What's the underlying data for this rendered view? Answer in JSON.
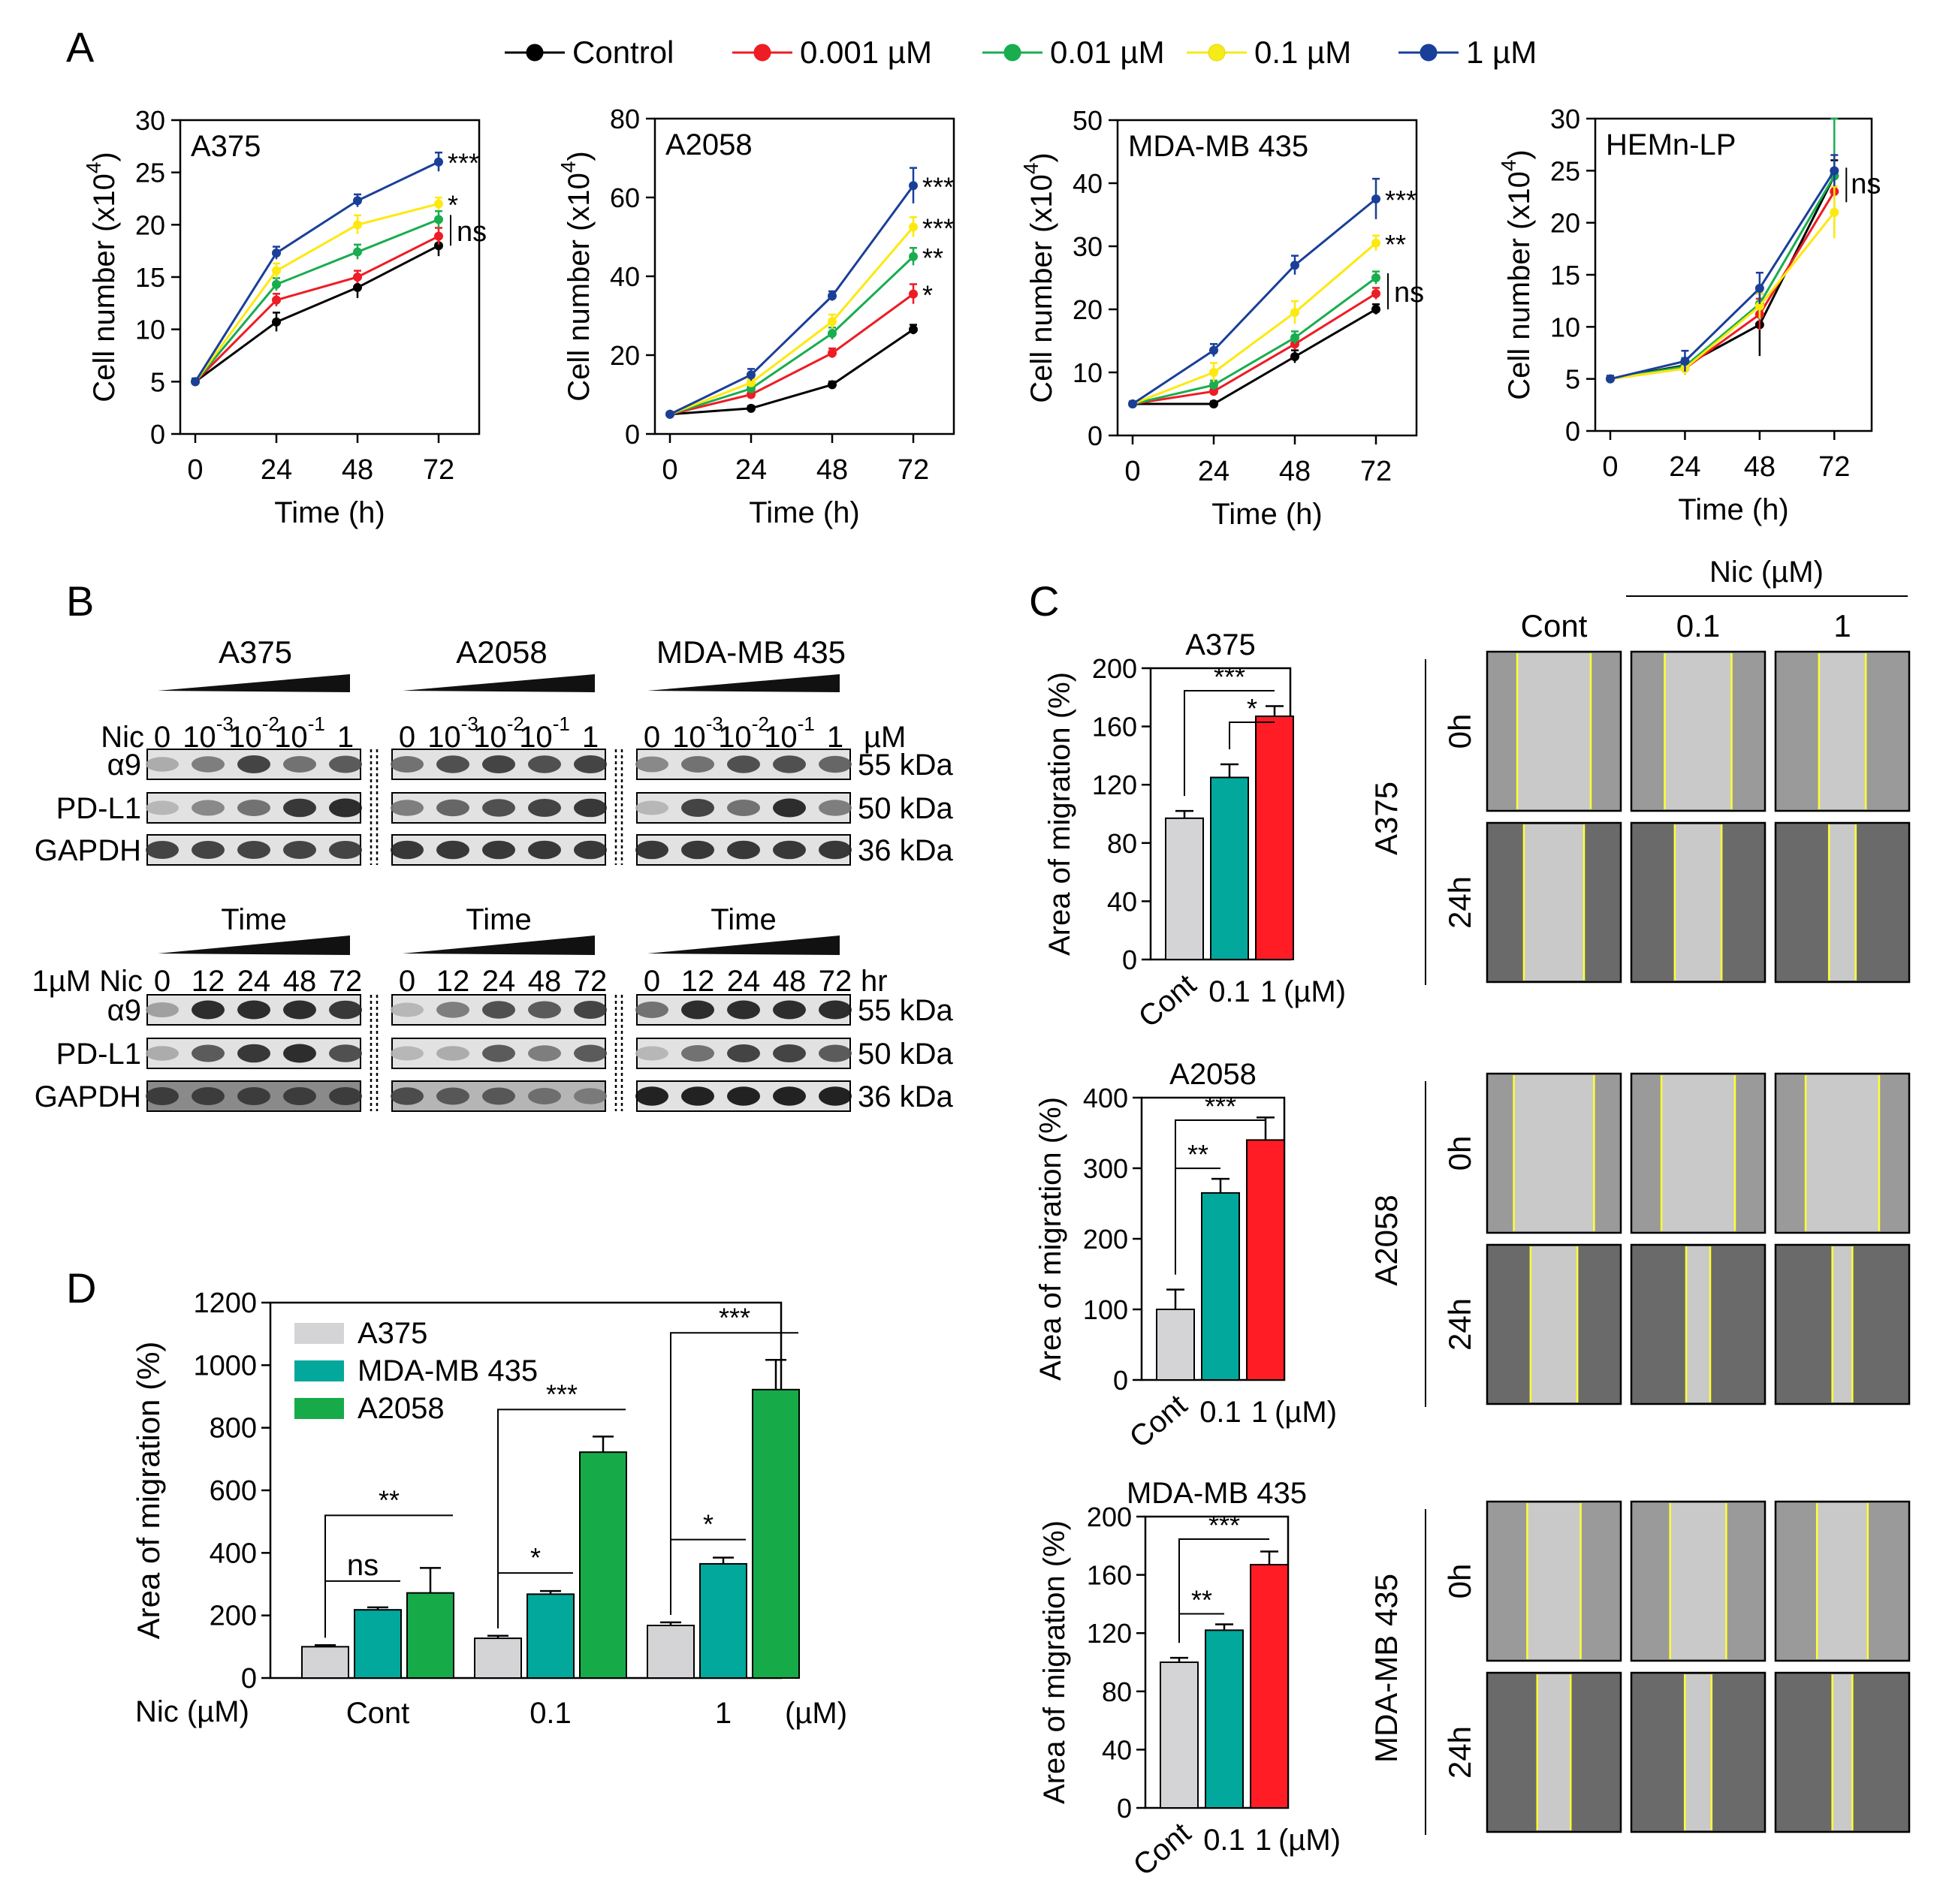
{
  "panel_labels": {
    "a": "A",
    "b": "B",
    "c": "C",
    "d": "D"
  },
  "legend": [
    {
      "name": "Control",
      "color": "#000000"
    },
    {
      "name": "0.001 µM",
      "color": "#ee1c24"
    },
    {
      "name": "0.01 µM",
      "color": "#19ad4f"
    },
    {
      "name": "0.1 µM",
      "color": "#f5eb19"
    },
    {
      "name": "1 µM",
      "color": "#1a3f99"
    }
  ],
  "colors": {
    "cont_bar": "#d4d4d6",
    "teal": "#01a89b",
    "red": "#ff1c25",
    "green": "#16aa49",
    "yellow_line": "#ffd400",
    "micro_field": "#9a9a9a",
    "micro_gap": "#c9c9c9",
    "wound_edge": "#ffff33"
  },
  "chart_data": [
    {
      "type": "line",
      "panel": "A",
      "title": "A375",
      "x": [
        0,
        24,
        48,
        72
      ],
      "xlabel": "Time (h)",
      "ylabel_main": "Cell number (x10",
      "ylabel_sup": "4",
      "ylabel_end": ")",
      "ylim": [
        0,
        30
      ],
      "yticks": [
        0,
        5,
        10,
        15,
        20,
        25,
        30
      ],
      "series": [
        {
          "name": "Control",
          "values": [
            5,
            10.7,
            14,
            18
          ],
          "err": [
            0.3,
            0.9,
            1.0,
            1.0
          ]
        },
        {
          "name": "0.001 µM",
          "values": [
            5,
            12.8,
            15,
            18.9
          ],
          "err": [
            0.3,
            0.6,
            0.6,
            0.8
          ]
        },
        {
          "name": "0.01 µM",
          "values": [
            5,
            14.3,
            17.4,
            20.5
          ],
          "err": [
            0.3,
            0.6,
            0.7,
            0.8
          ]
        },
        {
          "name": "0.1 µM",
          "values": [
            5,
            15.6,
            20,
            22
          ],
          "err": [
            0.3,
            0.7,
            0.9,
            0.6
          ]
        },
        {
          "name": "1 µM",
          "values": [
            5,
            17.3,
            22.3,
            26
          ],
          "err": [
            0.3,
            0.6,
            0.6,
            0.9
          ]
        }
      ],
      "significance": [
        "***",
        "*",
        "ns",
        "",
        ""
      ]
    },
    {
      "type": "line",
      "panel": "A",
      "title": "A2058",
      "x": [
        0,
        24,
        48,
        72
      ],
      "xlabel": "Time (h)",
      "ylabel_main": "Cell number (x10",
      "ylabel_sup": "4",
      "ylabel_end": ")",
      "ylim": [
        0,
        80
      ],
      "yticks": [
        0,
        20,
        40,
        60,
        80
      ],
      "series": [
        {
          "name": "Control",
          "values": [
            5,
            6.5,
            12.5,
            26.5
          ],
          "err": [
            0.5,
            0.6,
            0.8,
            1.2
          ]
        },
        {
          "name": "0.001 µM",
          "values": [
            5,
            10,
            20.5,
            35.5
          ],
          "err": [
            0.5,
            0.8,
            1.2,
            2.5
          ]
        },
        {
          "name": "0.01 µM",
          "values": [
            5,
            11.5,
            25.5,
            45
          ],
          "err": [
            0.5,
            0.9,
            1.5,
            2.2
          ]
        },
        {
          "name": "0.1 µM",
          "values": [
            5,
            13,
            28.5,
            52.5
          ],
          "err": [
            0.5,
            1.0,
            1.8,
            2.5
          ]
        },
        {
          "name": "1 µM",
          "values": [
            5,
            15,
            35,
            63
          ],
          "err": [
            0.5,
            1.5,
            1.2,
            4.5
          ]
        }
      ],
      "significance": [
        "***",
        "***",
        "**",
        "*",
        ""
      ]
    },
    {
      "type": "line",
      "panel": "A",
      "title": "MDA-MB 435",
      "x": [
        0,
        24,
        48,
        72
      ],
      "xlabel": "Time (h)",
      "ylabel_main": "Cell number (x10",
      "ylabel_sup": "4",
      "ylabel_end": ")",
      "ylim": [
        0,
        50
      ],
      "yticks": [
        0,
        10,
        20,
        30,
        40,
        50
      ],
      "series": [
        {
          "name": "Control",
          "values": [
            5,
            5,
            12.5,
            20
          ],
          "err": [
            0.4,
            0.4,
            1.0,
            0.8
          ]
        },
        {
          "name": "0.001 µM",
          "values": [
            5,
            7,
            14.5,
            22.5
          ],
          "err": [
            0.4,
            0.6,
            0.9,
            0.9
          ]
        },
        {
          "name": "0.01 µM",
          "values": [
            5,
            8,
            15.5,
            25
          ],
          "err": [
            0.4,
            0.7,
            1.0,
            1.0
          ]
        },
        {
          "name": "0.1 µM",
          "values": [
            5,
            10,
            19.5,
            30.5
          ],
          "err": [
            0.4,
            1.5,
            1.8,
            1.2
          ]
        },
        {
          "name": "1 µM",
          "values": [
            5,
            13.5,
            27,
            37.5
          ],
          "err": [
            0.4,
            1.0,
            1.5,
            3.2
          ]
        }
      ],
      "significance": [
        "***",
        "**",
        "ns",
        "",
        ""
      ]
    },
    {
      "type": "line",
      "panel": "A",
      "title": "HEMn-LP",
      "x": [
        0,
        24,
        48,
        72
      ],
      "xlabel": "Time (h)",
      "ylabel_main": "Cell number (x10",
      "ylabel_sup": "4",
      "ylabel_end": ")",
      "ylim": [
        0,
        30
      ],
      "yticks": [
        0,
        5,
        10,
        15,
        20,
        25,
        30
      ],
      "series": [
        {
          "name": "Control",
          "values": [
            5,
            6.3,
            10.2,
            24.5
          ],
          "err": [
            0.3,
            0.7,
            3.0,
            1.5
          ]
        },
        {
          "name": "0.001 µM",
          "values": [
            5,
            6.0,
            11.2,
            23
          ],
          "err": [
            0.3,
            0.6,
            1.5,
            1.5
          ]
        },
        {
          "name": "0.01 µM",
          "values": [
            5,
            6.2,
            12.2,
            24.5
          ],
          "err": [
            0.3,
            0.8,
            1.5,
            5.5
          ]
        },
        {
          "name": "0.1 µM",
          "values": [
            5,
            6.0,
            12,
            21
          ],
          "err": [
            0.3,
            0.6,
            1.2,
            2.5
          ]
        },
        {
          "name": "1 µM",
          "values": [
            5,
            6.7,
            13.7,
            25
          ],
          "err": [
            0.3,
            1.0,
            1.5,
            1.5
          ]
        }
      ],
      "significance": [
        "ns"
      ]
    },
    {
      "type": "bar",
      "panel": "C",
      "title": "A375",
      "ylabel": "Area of migration (%)",
      "categories": [
        "Cont",
        "0.1",
        "1"
      ],
      "unit": "(µM)",
      "values": [
        97,
        125,
        167
      ],
      "err": [
        5,
        9,
        7
      ],
      "ylim": [
        0,
        200
      ],
      "yticks": [
        0,
        40,
        80,
        120,
        160,
        200
      ],
      "brackets": [
        {
          "from": 0,
          "to": 2,
          "label": "***"
        },
        {
          "from": 1,
          "to": 2,
          "label": "*"
        }
      ]
    },
    {
      "type": "bar",
      "panel": "C",
      "title": "A2058",
      "ylabel": "Area of migration (%)",
      "categories": [
        "Cont",
        "0.1",
        "1"
      ],
      "unit": "(µM)",
      "values": [
        100,
        265,
        340
      ],
      "err": [
        28,
        20,
        32
      ],
      "ylim": [
        0,
        400
      ],
      "yticks": [
        0,
        100,
        200,
        300,
        400
      ],
      "brackets": [
        {
          "from": 0,
          "to": 2,
          "label": "***"
        },
        {
          "from": 0,
          "to": 1,
          "label": "**"
        }
      ]
    },
    {
      "type": "bar",
      "panel": "C",
      "title": "MDA-MB 435",
      "ylabel": "Area of migration (%)",
      "categories": [
        "Cont",
        "0.1",
        "1"
      ],
      "unit": "(µM)",
      "values": [
        100,
        122,
        167
      ],
      "err": [
        3,
        4,
        9
      ],
      "ylim": [
        0,
        200
      ],
      "yticks": [
        0,
        40,
        80,
        120,
        160,
        200
      ],
      "brackets": [
        {
          "from": 0,
          "to": 2,
          "label": "***"
        },
        {
          "from": 0,
          "to": 1,
          "label": "**"
        }
      ]
    },
    {
      "type": "bar",
      "panel": "D",
      "ylabel": "Area of migration (%)",
      "categories": [
        "Cont",
        "0.1",
        "1"
      ],
      "unit": "(µM)",
      "xlabel": "Nic (µM)",
      "ylim": [
        0,
        1200
      ],
      "yticks": [
        0,
        200,
        400,
        600,
        800,
        1000,
        1200
      ],
      "series": [
        {
          "name": "A375",
          "values": [
            100,
            127,
            168
          ],
          "err": [
            5,
            8,
            10
          ]
        },
        {
          "name": "MDA-MB 435",
          "values": [
            218,
            268,
            365
          ],
          "err": [
            8,
            10,
            20
          ]
        },
        {
          "name": "A2058",
          "values": [
            272,
            722,
            922
          ],
          "err": [
            80,
            50,
            95
          ]
        }
      ],
      "brackets": [
        {
          "group": 0,
          "from": 0,
          "to": 1,
          "label": "ns"
        },
        {
          "group": 0,
          "from": 0,
          "to": 2,
          "label": "**"
        },
        {
          "group": 1,
          "from": 0,
          "to": 1,
          "label": "*"
        },
        {
          "group": 1,
          "from": 0,
          "to": 2,
          "label": "***"
        },
        {
          "group": 2,
          "from": 0,
          "to": 1,
          "label": "*"
        },
        {
          "group": 2,
          "from": 0,
          "to": 2,
          "label": "***"
        }
      ]
    }
  ],
  "western": {
    "cell_lines": [
      "A375",
      "A2058",
      "MDA-MB 435"
    ],
    "dose_label": "Nic",
    "dose_lanes": [
      "0",
      "10",
      "10",
      "10",
      "1"
    ],
    "dose_exps": [
      "",
      "-3",
      "-2",
      "-1",
      ""
    ],
    "dose_unit": "µM",
    "time_label": "1µM Nic",
    "time_header": "Time",
    "time_lanes": [
      "0",
      "12",
      "24",
      "48",
      "72"
    ],
    "time_unit": "hr",
    "proteins": [
      "α9",
      "PD-L1",
      "GAPDH"
    ],
    "sizes": [
      "55 kDa",
      "50 kDa",
      "36 kDa"
    ],
    "dose_intensity": [
      [
        [
          0.35,
          0.55,
          0.8,
          0.6,
          0.7
        ],
        [
          0.3,
          0.5,
          0.6,
          0.85,
          0.9
        ],
        [
          0.8,
          0.8,
          0.8,
          0.8,
          0.8
        ]
      ],
      [
        [
          0.6,
          0.75,
          0.8,
          0.75,
          0.8
        ],
        [
          0.55,
          0.65,
          0.75,
          0.8,
          0.85
        ],
        [
          0.85,
          0.85,
          0.85,
          0.85,
          0.85
        ]
      ],
      [
        [
          0.5,
          0.6,
          0.75,
          0.75,
          0.65
        ],
        [
          0.3,
          0.8,
          0.6,
          0.9,
          0.55
        ],
        [
          0.85,
          0.85,
          0.85,
          0.85,
          0.85
        ]
      ]
    ],
    "time_intensity": [
      [
        [
          0.4,
          0.9,
          0.9,
          0.9,
          0.85
        ],
        [
          0.35,
          0.7,
          0.85,
          0.9,
          0.75
        ],
        [
          0.8,
          0.8,
          0.8,
          0.8,
          0.8
        ]
      ],
      [
        [
          0.3,
          0.55,
          0.75,
          0.7,
          0.8
        ],
        [
          0.3,
          0.35,
          0.7,
          0.55,
          0.7
        ],
        [
          0.75,
          0.7,
          0.7,
          0.6,
          0.55
        ]
      ],
      [
        [
          0.6,
          0.9,
          0.9,
          0.9,
          0.9
        ],
        [
          0.3,
          0.6,
          0.8,
          0.8,
          0.7
        ],
        [
          0.95,
          0.95,
          0.95,
          0.95,
          0.95
        ]
      ]
    ]
  },
  "micrographs": {
    "header_group": "Nic (µM)",
    "columns": [
      "Cont",
      "0.1",
      "1"
    ],
    "rows": [
      "0h",
      "24h"
    ],
    "cell_lines": [
      "A375",
      "A2058",
      "MDA-MB 435"
    ],
    "gap_fraction": [
      [
        [
          0.55,
          0.5,
          0.35
        ],
        [
          0.45,
          0.35,
          0.2
        ]
      ],
      [
        [
          0.6,
          0.55,
          0.55
        ],
        [
          0.35,
          0.18,
          0.15
        ]
      ],
      [
        [
          0.4,
          0.42,
          0.38
        ],
        [
          0.25,
          0.2,
          0.15
        ]
      ]
    ]
  }
}
